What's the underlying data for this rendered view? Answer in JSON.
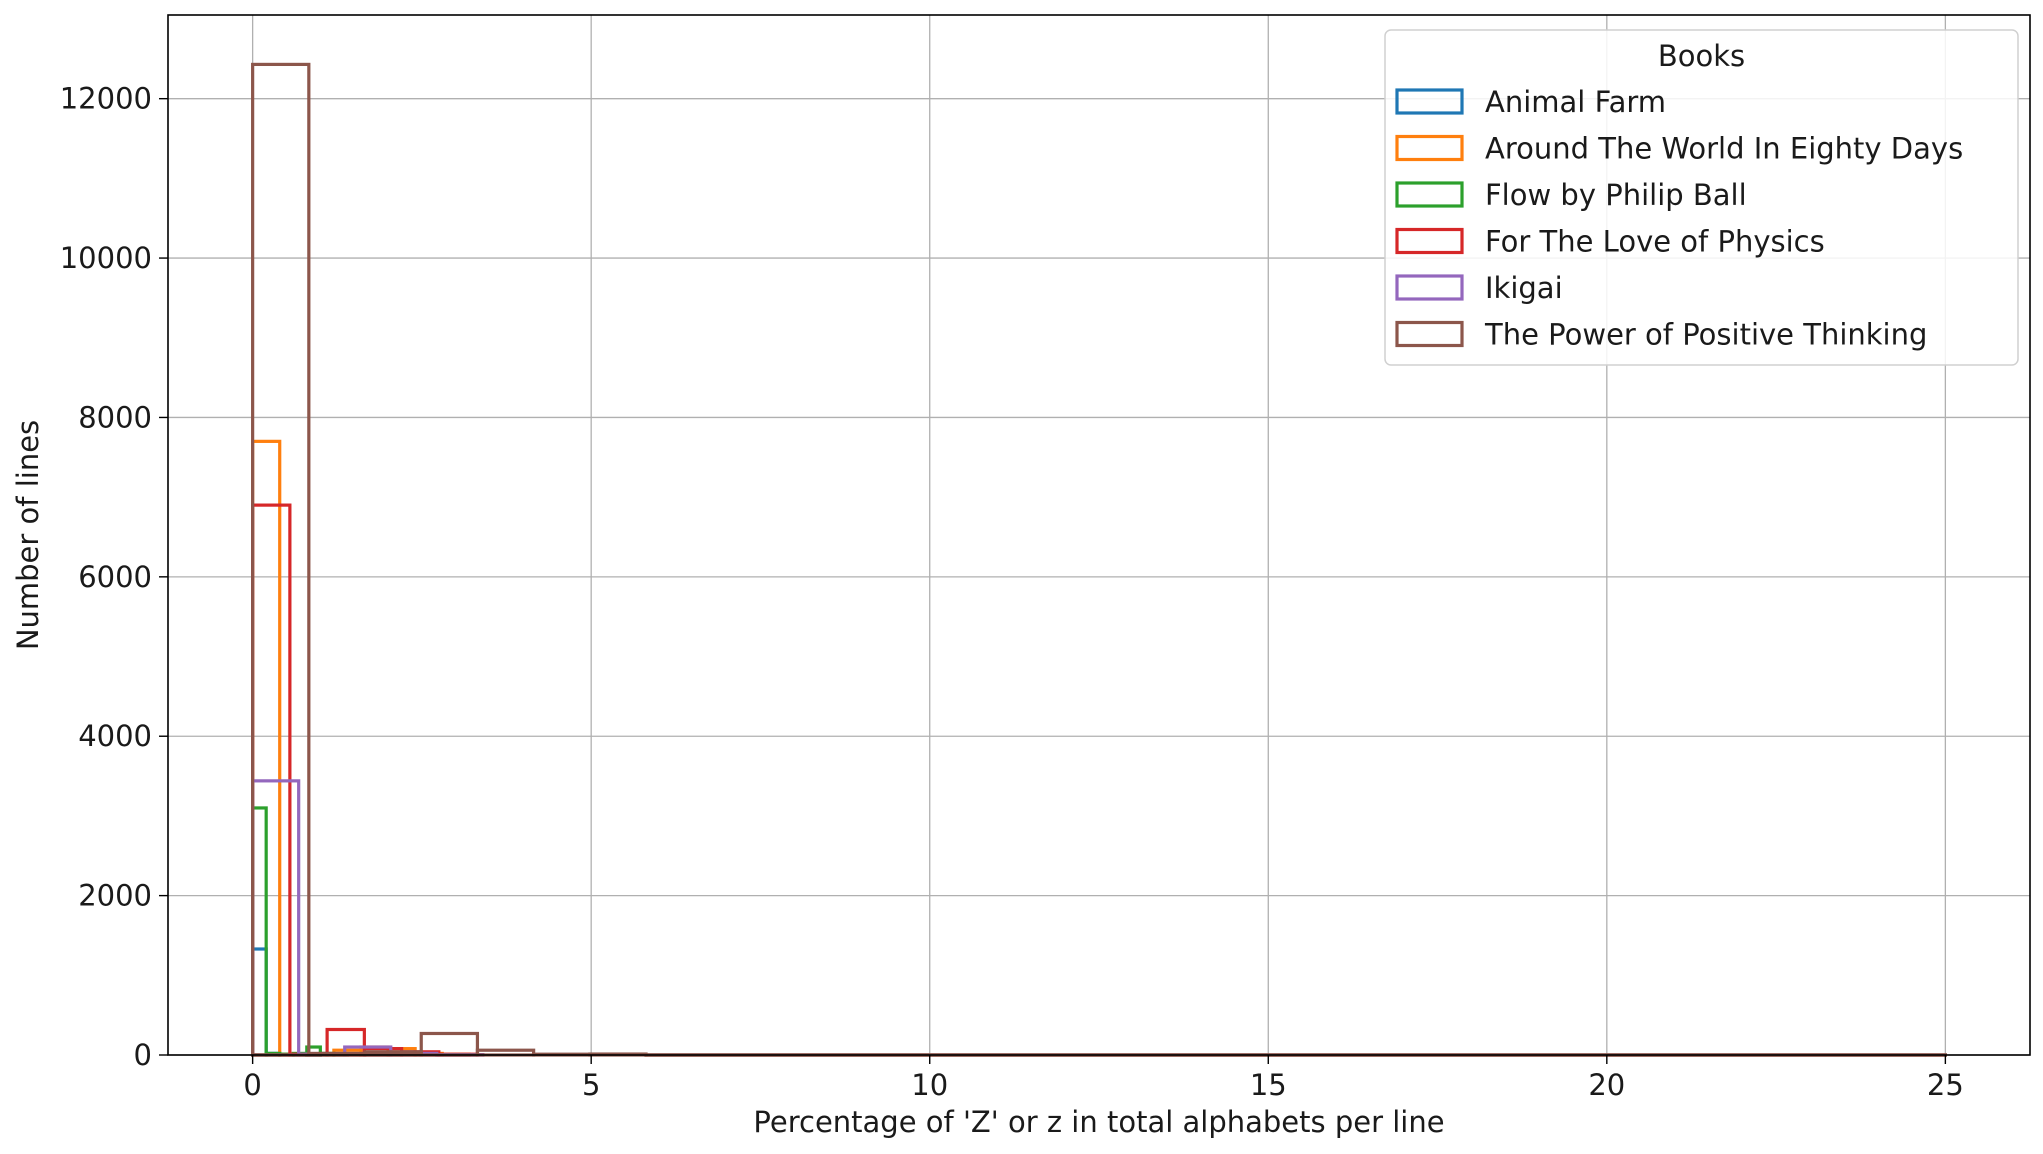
{
  "chart_data": {
    "type": "histogram",
    "title": "",
    "xlabel": "Percentage of 'Z' or z in total alphabets per line",
    "ylabel": "Number of lines",
    "xlim": [
      -1.25,
      26.25
    ],
    "ylim": [
      0,
      13050
    ],
    "xticks": [
      0,
      5,
      10,
      15,
      20,
      25
    ],
    "yticks": [
      0,
      2000,
      4000,
      6000,
      8000,
      10000,
      12000
    ],
    "grid": true,
    "legend": {
      "title": "Books",
      "position": "top-right"
    },
    "series": [
      {
        "name": "Animal Farm",
        "color": "#1f77b4",
        "bins": [
          [
            0,
            0.2,
            1330
          ],
          [
            0.2,
            0.4,
            20
          ],
          [
            0.4,
            0.6,
            10
          ],
          [
            0.6,
            0.8,
            5
          ],
          [
            0.8,
            1.0,
            3
          ]
        ]
      },
      {
        "name": "Around The World In Eighty Days",
        "color": "#ff7f0e",
        "bins": [
          [
            0,
            0.4,
            7700
          ],
          [
            0.4,
            0.8,
            10
          ],
          [
            0.8,
            1.2,
            10
          ],
          [
            1.2,
            1.6,
            60
          ],
          [
            1.6,
            2.0,
            100
          ],
          [
            2.0,
            2.4,
            80
          ],
          [
            2.4,
            2.8,
            20
          ],
          [
            2.8,
            3.2,
            10
          ]
        ]
      },
      {
        "name": "Flow by Philip Ball",
        "color": "#2ca02c",
        "bins": [
          [
            0,
            0.2,
            3100
          ],
          [
            0.2,
            0.4,
            20
          ],
          [
            0.4,
            0.6,
            10
          ],
          [
            0.6,
            0.8,
            20
          ],
          [
            0.8,
            1.0,
            100
          ],
          [
            1.0,
            1.2,
            20
          ],
          [
            1.2,
            1.4,
            10
          ]
        ]
      },
      {
        "name": "For The Love of Physics",
        "color": "#d62728",
        "bins": [
          [
            0,
            0.55,
            6900
          ],
          [
            0.55,
            1.1,
            10
          ],
          [
            1.1,
            1.65,
            320
          ],
          [
            1.65,
            2.2,
            80
          ],
          [
            2.2,
            2.75,
            40
          ],
          [
            2.75,
            3.3,
            10
          ]
        ]
      },
      {
        "name": "Ikigai",
        "color": "#9467bd",
        "bins": [
          [
            0,
            0.68,
            3440
          ],
          [
            0.68,
            1.36,
            10
          ],
          [
            1.36,
            2.04,
            100
          ],
          [
            2.04,
            2.72,
            20
          ],
          [
            2.72,
            3.4,
            5
          ]
        ]
      },
      {
        "name": "The Power of Positive Thinking",
        "color": "#8c564b",
        "bins": [
          [
            0,
            0.83,
            12430
          ],
          [
            0.83,
            1.66,
            20
          ],
          [
            1.66,
            2.49,
            40
          ],
          [
            2.49,
            3.32,
            270
          ],
          [
            3.32,
            4.15,
            60
          ],
          [
            4.15,
            4.98,
            10
          ],
          [
            4.98,
            5.81,
            12
          ],
          [
            5.81,
            25,
            3
          ]
        ]
      }
    ]
  }
}
